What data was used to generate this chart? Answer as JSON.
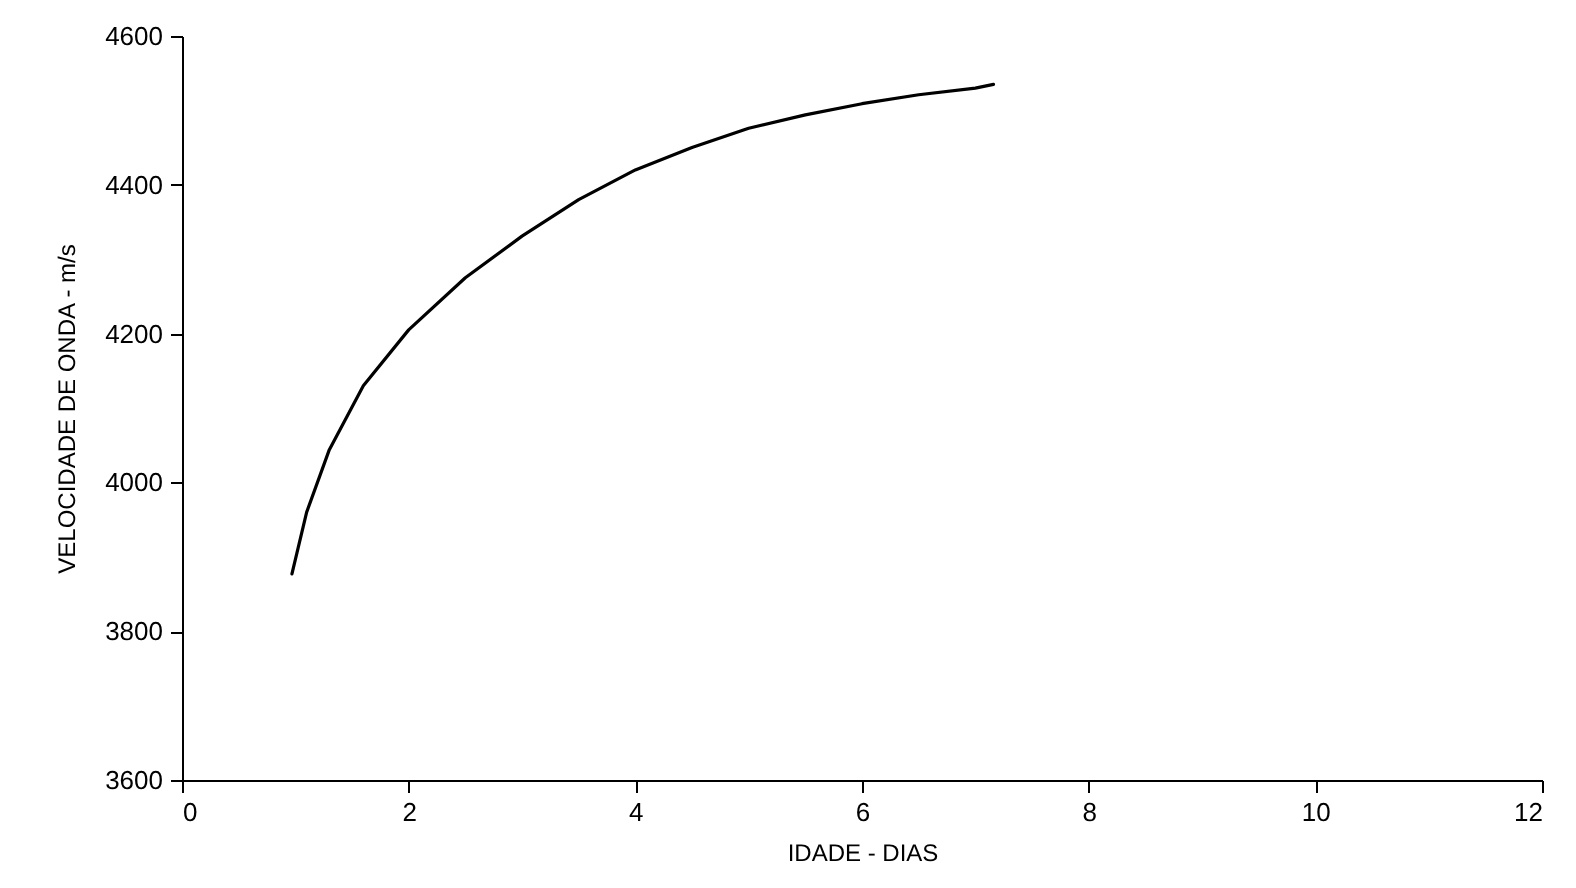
{
  "chart_data": {
    "type": "line",
    "xlabel": "IDADE - DIAS",
    "ylabel": "VELOCIDADE DE ONDA - m/s",
    "xlim": [
      0,
      12
    ],
    "xticks": [
      0,
      2,
      4,
      6,
      8,
      10,
      12
    ],
    "ylim": [
      3600,
      4600
    ],
    "yticks": [
      3600,
      3800,
      4000,
      4200,
      4400,
      4600
    ],
    "grid": false,
    "marker": "none",
    "line_style": "solid",
    "series": [
      {
        "color": "#000000",
        "x": [
          0.97,
          1.1,
          1.3,
          1.6,
          2,
          2.5,
          3,
          3.5,
          4,
          4.5,
          5,
          5.5,
          6,
          6.5,
          7,
          7.16
        ],
        "values": [
          3877,
          3960,
          4044,
          4130,
          4205,
          4275,
          4331,
          4380,
          4420,
          4450,
          4476,
          4494,
          4509,
          4521,
          4530,
          4535
        ]
      }
    ]
  }
}
